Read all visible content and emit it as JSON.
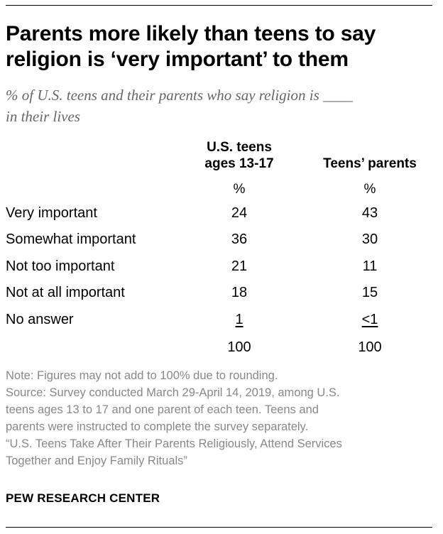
{
  "title_lines": [
    "Parents more likely than teens to say",
    "religion is ‘very important’ to them"
  ],
  "subtitle_lines": [
    "% of U.S. teens and their parents who say religion is ____",
    "in their lives"
  ],
  "chart_data": {
    "type": "table",
    "columns": [
      {
        "header_lines": [
          "U.S. teens",
          "ages 13-17"
        ],
        "unit": "%"
      },
      {
        "header_lines": [
          "Teens’ parents"
        ],
        "unit": "%"
      }
    ],
    "rows": [
      {
        "label": "Very important",
        "values": [
          "24",
          "43"
        ]
      },
      {
        "label": "Somewhat important",
        "values": [
          "36",
          "30"
        ]
      },
      {
        "label": "Not too important",
        "values": [
          "21",
          "11"
        ]
      },
      {
        "label": "Not at all important",
        "values": [
          "18",
          "15"
        ]
      },
      {
        "label": "No answer",
        "values": [
          "1",
          "<1"
        ]
      }
    ],
    "totals": [
      "100",
      "100"
    ]
  },
  "notes_lines": [
    "Note: Figures may not add to 100% due to rounding.",
    "Source: Survey conducted March 29-April 14, 2019, among U.S.",
    "teens ages 13 to 17 and one parent of each teen. Teens and",
    "parents were instructed to complete the survey separately.",
    "“U.S. Teens Take After Their Parents Religiously, Attend Services",
    "Together and Enjoy Family Rituals”"
  ],
  "brand": "PEW RESEARCH CENTER",
  "colors": {
    "text": "#000000",
    "subtitle": "#666666",
    "notes": "#888888",
    "rule": "#000000"
  }
}
